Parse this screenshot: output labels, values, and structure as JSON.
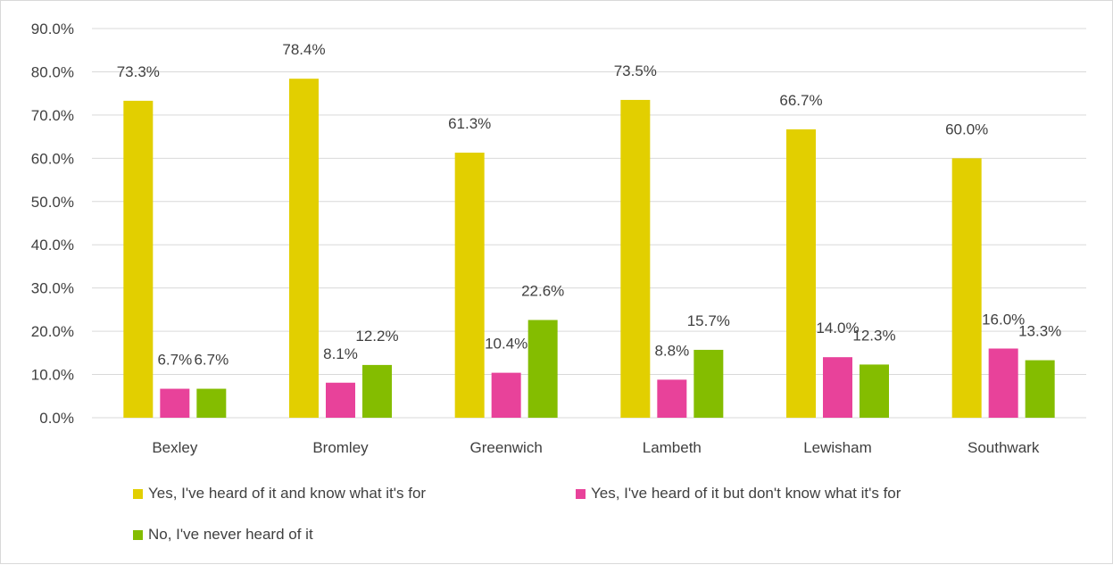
{
  "chart_data": {
    "type": "bar",
    "title": "",
    "xlabel": "",
    "ylabel": "",
    "categories": [
      "Bexley",
      "Bromley",
      "Greenwich",
      "Lambeth",
      "Lewisham",
      "Southwark"
    ],
    "series": [
      {
        "name": "Yes, I've heard of it and know what it's for",
        "color": "#e2cf00",
        "values": [
          73.3,
          78.4,
          61.3,
          73.5,
          66.7,
          60.0
        ],
        "labels": [
          "73.3%",
          "78.4%",
          "61.3%",
          "73.5%",
          "66.7%",
          "60.0%"
        ]
      },
      {
        "name": "Yes, I've heard of it but don't know what it's for",
        "color": "#e8429a",
        "values": [
          6.7,
          8.1,
          10.4,
          8.8,
          14.0,
          16.0
        ],
        "labels": [
          "6.7%",
          "8.1%",
          "10.4%",
          "8.8%",
          "14.0%",
          "16.0%"
        ]
      },
      {
        "name": "No, I've never heard of it",
        "color": "#84bd00",
        "values": [
          6.7,
          12.2,
          22.6,
          15.7,
          12.3,
          13.3
        ],
        "labels": [
          "6.7%",
          "12.2%",
          "22.6%",
          "15.7%",
          "12.3%",
          "13.3%"
        ]
      }
    ],
    "ylim": [
      0,
      90
    ],
    "yticks": [
      "0.0%",
      "10.0%",
      "20.0%",
      "30.0%",
      "40.0%",
      "50.0%",
      "60.0%",
      "70.0%",
      "80.0%",
      "90.0%"
    ],
    "grid": true,
    "gridColor": "#d9d9d9",
    "legend": "bottom"
  }
}
